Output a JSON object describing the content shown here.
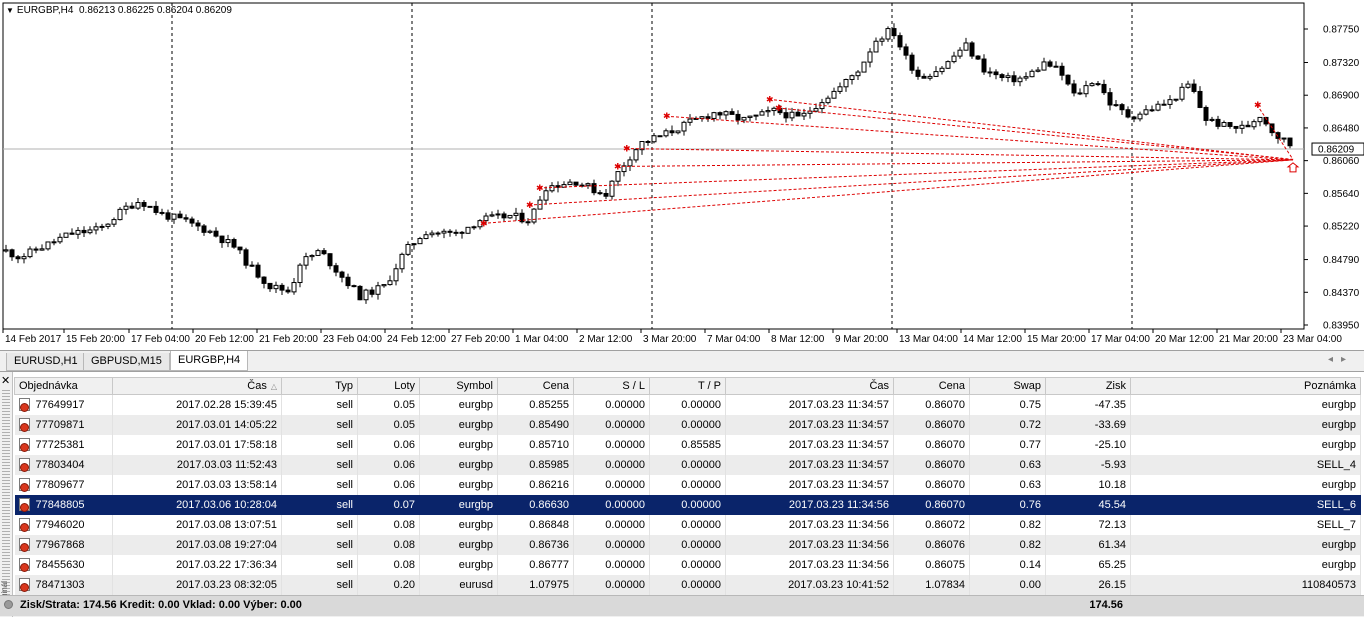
{
  "chart": {
    "symbol_label": "EURGBP,H4",
    "ohlc_label": "0.86213 0.86225 0.86204 0.86209",
    "current_price": "0.86209",
    "price_labels": [
      "0.87750",
      "0.87320",
      "0.86900",
      "0.86480",
      "0.86060",
      "0.85640",
      "0.85220",
      "0.84790",
      "0.84370",
      "0.83950"
    ],
    "date_labels": [
      "14 Feb 2017",
      "15 Feb 20:00",
      "17 Feb 04:00",
      "20 Feb 12:00",
      "21 Feb 20:00",
      "23 Feb 04:00",
      "24 Feb 12:00",
      "27 Feb 20:00",
      "1 Mar 04:00",
      "2 Mar 12:00",
      "3 Mar 20:00",
      "7 Mar 04:00",
      "8 Mar 12:00",
      "9 Mar 20:00",
      "13 Mar 04:00",
      "14 Mar 12:00",
      "15 Mar 20:00",
      "17 Mar 04:00",
      "20 Mar 12:00",
      "21 Mar 20:00",
      "23 Mar 04:00"
    ],
    "colors": {
      "background": "#ffffff",
      "candle": "#000000",
      "trade_line": "#dd0000",
      "separator": "#000000"
    }
  },
  "chart_tabs": [
    "EURUSD,H1",
    "GBPUSD,M15",
    "EURGBP,H4"
  ],
  "active_tab": "EURGBP,H4",
  "table": {
    "columns": [
      "Objednávka",
      "Čas",
      "Typ",
      "Loty",
      "Symbol",
      "Cena",
      "S / L",
      "T / P",
      "Čas",
      "Cena",
      "Swap",
      "Zisk",
      "Poznámka"
    ],
    "rows": [
      {
        "order": "77649917",
        "open_time": "2017.02.28 15:39:45",
        "type": "sell",
        "lots": "0.05",
        "symbol": "eurgbp",
        "open_price": "0.85255",
        "sl": "0.00000",
        "tp": "0.00000",
        "close_time": "2017.03.23 11:34:57",
        "close_price": "0.86070",
        "swap": "0.75",
        "profit": "-47.35",
        "comment": "eurgbp"
      },
      {
        "order": "77709871",
        "open_time": "2017.03.01 14:05:22",
        "type": "sell",
        "lots": "0.05",
        "symbol": "eurgbp",
        "open_price": "0.85490",
        "sl": "0.00000",
        "tp": "0.00000",
        "close_time": "2017.03.23 11:34:57",
        "close_price": "0.86070",
        "swap": "0.72",
        "profit": "-33.69",
        "comment": "eurgbp"
      },
      {
        "order": "77725381",
        "open_time": "2017.03.01 17:58:18",
        "type": "sell",
        "lots": "0.06",
        "symbol": "eurgbp",
        "open_price": "0.85710",
        "sl": "0.00000",
        "tp": "0.85585",
        "close_time": "2017.03.23 11:34:57",
        "close_price": "0.86070",
        "swap": "0.77",
        "profit": "-25.10",
        "comment": "eurgbp"
      },
      {
        "order": "77803404",
        "open_time": "2017.03.03 11:52:43",
        "type": "sell",
        "lots": "0.06",
        "symbol": "eurgbp",
        "open_price": "0.85985",
        "sl": "0.00000",
        "tp": "0.00000",
        "close_time": "2017.03.23 11:34:57",
        "close_price": "0.86070",
        "swap": "0.63",
        "profit": "-5.93",
        "comment": "SELL_4"
      },
      {
        "order": "77809677",
        "open_time": "2017.03.03 13:58:14",
        "type": "sell",
        "lots": "0.06",
        "symbol": "eurgbp",
        "open_price": "0.86216",
        "sl": "0.00000",
        "tp": "0.00000",
        "close_time": "2017.03.23 11:34:57",
        "close_price": "0.86070",
        "swap": "0.63",
        "profit": "10.18",
        "comment": "eurgbp"
      },
      {
        "order": "77848805",
        "open_time": "2017.03.06 10:28:04",
        "type": "sell",
        "lots": "0.07",
        "symbol": "eurgbp",
        "open_price": "0.86630",
        "sl": "0.00000",
        "tp": "0.00000",
        "close_time": "2017.03.23 11:34:56",
        "close_price": "0.86070",
        "swap": "0.76",
        "profit": "45.54",
        "comment": "SELL_6"
      },
      {
        "order": "77946020",
        "open_time": "2017.03.08 13:07:51",
        "type": "sell",
        "lots": "0.08",
        "symbol": "eurgbp",
        "open_price": "0.86848",
        "sl": "0.00000",
        "tp": "0.00000",
        "close_time": "2017.03.23 11:34:56",
        "close_price": "0.86072",
        "swap": "0.82",
        "profit": "72.13",
        "comment": "SELL_7"
      },
      {
        "order": "77967868",
        "open_time": "2017.03.08 19:27:04",
        "type": "sell",
        "lots": "0.08",
        "symbol": "eurgbp",
        "open_price": "0.86736",
        "sl": "0.00000",
        "tp": "0.00000",
        "close_time": "2017.03.23 11:34:56",
        "close_price": "0.86076",
        "swap": "0.82",
        "profit": "61.34",
        "comment": "eurgbp"
      },
      {
        "order": "78455630",
        "open_time": "2017.03.22 17:36:34",
        "type": "sell",
        "lots": "0.08",
        "symbol": "eurgbp",
        "open_price": "0.86777",
        "sl": "0.00000",
        "tp": "0.00000",
        "close_time": "2017.03.23 11:34:56",
        "close_price": "0.86075",
        "swap": "0.14",
        "profit": "65.25",
        "comment": "eurgbp"
      },
      {
        "order": "78471303",
        "open_time": "2017.03.23 08:32:05",
        "type": "sell",
        "lots": "0.20",
        "symbol": "eurusd",
        "open_price": "1.07975",
        "sl": "0.00000",
        "tp": "0.00000",
        "close_time": "2017.03.23 10:41:52",
        "close_price": "1.07834",
        "swap": "0.00",
        "profit": "26.15",
        "comment": "110840573"
      }
    ],
    "selected_order": "77848805"
  },
  "summary": {
    "text": "Zisk/Strata: 174.56  Kredit: 0.00  Vklad: 0.00  Výber: 0.00",
    "total_profit": "174.56"
  },
  "terminal_label": "Terminál"
}
